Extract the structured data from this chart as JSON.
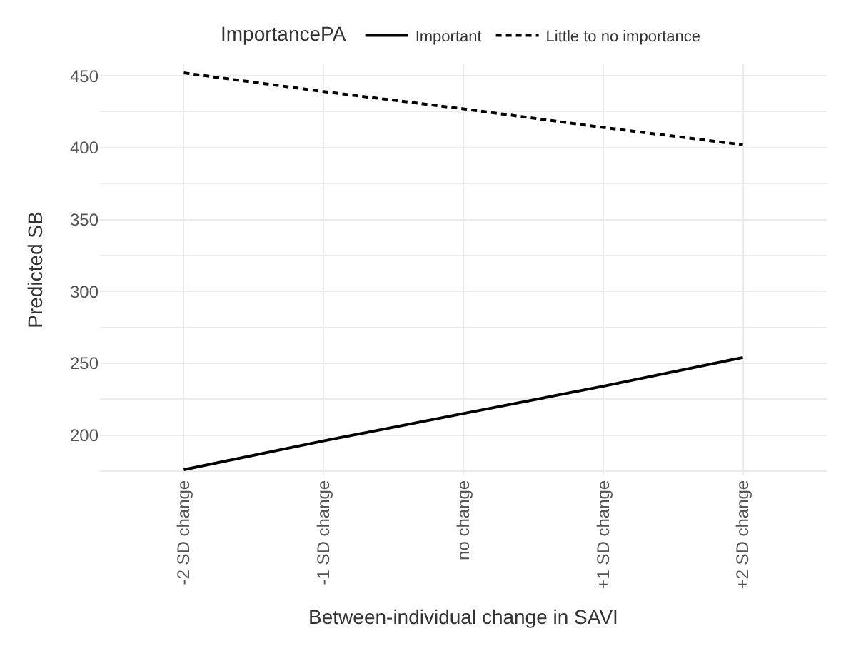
{
  "chart_data": {
    "type": "line",
    "xlabel": "Between-individual change in SAVI",
    "ylabel": "Predicted SB",
    "legend_title": "ImportancePA",
    "categories": [
      "-2 SD change",
      "-1 SD change",
      "no change",
      "+1 SD change",
      "+2 SD change"
    ],
    "series": [
      {
        "name": "Important",
        "color": "#000000",
        "line_style": "solid",
        "values": [
          176,
          196,
          215,
          234,
          254
        ]
      },
      {
        "name": "Little to no importance",
        "color": "#000000",
        "line_style": "dashed",
        "values": [
          452,
          439,
          427,
          414,
          402
        ]
      }
    ],
    "ylim": [
      172,
      458
    ],
    "yticks": [
      {
        "value": 175,
        "label": null
      },
      200,
      {
        "value": 225,
        "label": null
      },
      250,
      {
        "value": 275,
        "label": null
      },
      300,
      {
        "value": 325,
        "label": null
      },
      350,
      {
        "value": 375,
        "label": null
      },
      400,
      {
        "value": 425,
        "label": null
      },
      450
    ],
    "grid": true,
    "legend": "top",
    "marker": "none"
  }
}
